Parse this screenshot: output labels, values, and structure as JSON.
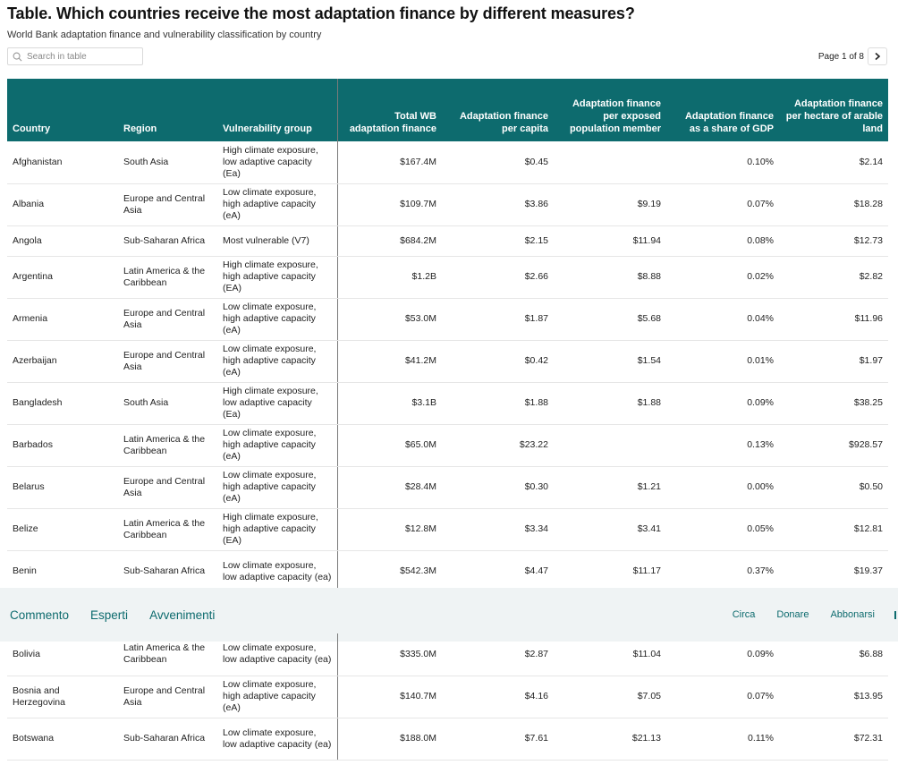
{
  "title": "Table. Which countries receive the most adaptation finance by different measures?",
  "subtitle": "World Bank adaptation finance and vulnerability classification by country",
  "search": {
    "placeholder": "Search in table",
    "icon": "search-icon"
  },
  "pager": {
    "label": "Page 1 of 8",
    "next_icon": "chevron-right-icon"
  },
  "colors": {
    "header_bg": "#0d6b6e",
    "nav_bg": "#eff3f4",
    "nav_link": "#0d6b6e"
  },
  "columns": [
    "Country",
    "Region",
    "Vulnerability group",
    "Total WB adaptation finance",
    "Adaptation finance per capita",
    "Adaptation finance per exposed population member",
    "Adaptation finance as a share of GDP",
    "Adaptation finance per hectare of arable land"
  ],
  "rows": [
    {
      "country": "Afghanistan",
      "region": "South Asia",
      "vulnerability": "High climate exposure, low adaptive capacity (Ea)",
      "total": "$167.4M",
      "per_capita": "$0.45",
      "per_exposed": "",
      "share_gdp": "0.10%",
      "per_hectare": "$2.14"
    },
    {
      "country": "Albania",
      "region": "Europe and Central Asia",
      "vulnerability": "Low climate exposure, high adaptive capacity (eA)",
      "total": "$109.7M",
      "per_capita": "$3.86",
      "per_exposed": "$9.19",
      "share_gdp": "0.07%",
      "per_hectare": "$18.28"
    },
    {
      "country": "Angola",
      "region": "Sub-Saharan Africa",
      "vulnerability": "Most vulnerable (V7)",
      "total": "$684.2M",
      "per_capita": "$2.15",
      "per_exposed": "$11.94",
      "share_gdp": "0.08%",
      "per_hectare": "$12.73"
    },
    {
      "country": "Argentina",
      "region": "Latin America & the Caribbean",
      "vulnerability": "High climate exposure, high adaptive capacity (EA)",
      "total": "$1.2B",
      "per_capita": "$2.66",
      "per_exposed": "$8.88",
      "share_gdp": "0.02%",
      "per_hectare": "$2.82"
    },
    {
      "country": "Armenia",
      "region": "Europe and Central Asia",
      "vulnerability": "Low climate exposure, high adaptive capacity (eA)",
      "total": "$53.0M",
      "per_capita": "$1.87",
      "per_exposed": "$5.68",
      "share_gdp": "0.04%",
      "per_hectare": "$11.96"
    },
    {
      "country": "Azerbaijan",
      "region": "Europe and Central Asia",
      "vulnerability": "Low climate exposure, high adaptive capacity (eA)",
      "total": "$41.2M",
      "per_capita": "$0.42",
      "per_exposed": "$1.54",
      "share_gdp": "0.01%",
      "per_hectare": "$1.97"
    },
    {
      "country": "Bangladesh",
      "region": "South Asia",
      "vulnerability": "High climate exposure, low adaptive capacity (Ea)",
      "total": "$3.1B",
      "per_capita": "$1.88",
      "per_exposed": "$1.88",
      "share_gdp": "0.09%",
      "per_hectare": "$38.25"
    },
    {
      "country": "Barbados",
      "region": "Latin America & the Caribbean",
      "vulnerability": "Low climate exposure, high adaptive capacity (eA)",
      "total": "$65.0M",
      "per_capita": "$23.22",
      "per_exposed": "",
      "share_gdp": "0.13%",
      "per_hectare": "$928.57"
    },
    {
      "country": "Belarus",
      "region": "Europe and Central Asia",
      "vulnerability": "Low climate exposure, high adaptive capacity (eA)",
      "total": "$28.4M",
      "per_capita": "$0.30",
      "per_exposed": "$1.21",
      "share_gdp": "0.00%",
      "per_hectare": "$0.50"
    },
    {
      "country": "Belize",
      "region": "Latin America & the Caribbean",
      "vulnerability": "High climate exposure, high adaptive capacity (EA)",
      "total": "$12.8M",
      "per_capita": "$3.34",
      "per_exposed": "$3.41",
      "share_gdp": "0.05%",
      "per_hectare": "$12.81"
    },
    {
      "country": "Benin",
      "region": "Sub-Saharan Africa",
      "vulnerability": "Low climate exposure, low adaptive capacity (ea)",
      "total": "$542.3M",
      "per_capita": "$4.47",
      "per_exposed": "$11.17",
      "share_gdp": "0.37%",
      "per_hectare": "$19.37"
    }
  ],
  "nav": {
    "left": [
      "Commento",
      "Esperti",
      "Avvenimenti"
    ],
    "right": [
      "Circa",
      "Donare",
      "Abbonarsi"
    ]
  },
  "rows_below": [
    {
      "country": "Bolivia",
      "region": "Latin America & the Caribbean",
      "vulnerability": "Low climate exposure, low adaptive capacity (ea)",
      "total": "$335.0M",
      "per_capita": "$2.87",
      "per_exposed": "$11.04",
      "share_gdp": "0.09%",
      "per_hectare": "$6.88"
    },
    {
      "country": "Bosnia and Herzegovina",
      "region": "Europe and Central Asia",
      "vulnerability": "Low climate exposure, high adaptive capacity (eA)",
      "total": "$140.7M",
      "per_capita": "$4.16",
      "per_exposed": "$7.05",
      "share_gdp": "0.07%",
      "per_hectare": "$13.95"
    },
    {
      "country": "Botswana",
      "region": "Sub-Saharan Africa",
      "vulnerability": "Low climate exposure, low adaptive capacity (ea)",
      "total": "$188.0M",
      "per_capita": "$7.61",
      "per_exposed": "$21.13",
      "share_gdp": "0.11%",
      "per_hectare": "$72.31"
    }
  ]
}
